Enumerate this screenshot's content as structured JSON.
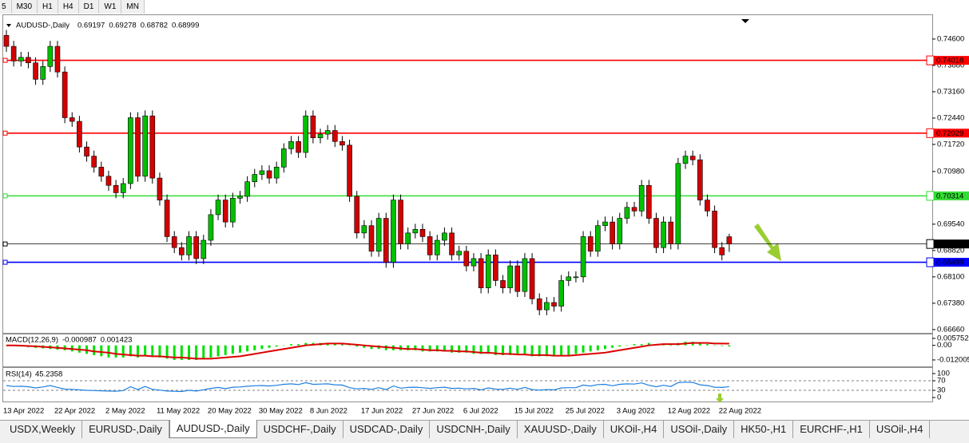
{
  "toolbar": [
    "5",
    "M30",
    "H1",
    "H4",
    "D1",
    "W1",
    "MN"
  ],
  "tabs": [
    "USDX,Weekly",
    "EURUSD-,Daily",
    "AUDUSD-,Daily",
    "USDCHF-,Daily",
    "USDCAD-,Daily",
    "USDCNH-,Daily",
    "XAUUSD-,Daily",
    "UKOil-,H4",
    "USOil-,Daily",
    "HK50-,H1",
    "EURCHF-,H1",
    "USOil-,H4"
  ],
  "active_tab": 2,
  "chart_data": [
    {
      "type": "candlestick",
      "title": "AUDUSD-,Daily",
      "categories": [
        "13 Apr 2022",
        null,
        null,
        null,
        null,
        null,
        null,
        "22 Apr 2022",
        null,
        null,
        null,
        null,
        null,
        null,
        "2 May 2022",
        null,
        null,
        null,
        null,
        null,
        null,
        "11 May 2022",
        null,
        null,
        null,
        null,
        null,
        null,
        "20 May 2022",
        null,
        null,
        null,
        null,
        null,
        null,
        "30 May 2022",
        null,
        null,
        null,
        null,
        null,
        null,
        "8 Jun 2022",
        null,
        null,
        null,
        null,
        null,
        null,
        "17 Jun 2022",
        null,
        null,
        null,
        null,
        null,
        null,
        "27 Jun 2022",
        null,
        null,
        null,
        null,
        null,
        null,
        "6 Jul 2022",
        null,
        null,
        null,
        null,
        null,
        null,
        "15 Jul 2022",
        null,
        null,
        null,
        null,
        null,
        null,
        "25 Jul 2022",
        null,
        null,
        null,
        null,
        null,
        null,
        "3 Aug 2022",
        null,
        null,
        null,
        null,
        null,
        null,
        "12 Aug 2022",
        null,
        null,
        null,
        null,
        null,
        null,
        "22 Aug 2022",
        null
      ],
      "open": [
        0.747,
        0.744,
        0.74,
        0.741,
        0.7395,
        0.735,
        0.7385,
        0.744,
        0.737,
        0.7245,
        0.7235,
        0.7165,
        0.714,
        0.711,
        0.7085,
        0.706,
        0.704,
        0.7065,
        0.7245,
        0.7085,
        0.725,
        0.708,
        0.702,
        0.692,
        0.689,
        0.687,
        0.692,
        0.686,
        0.691,
        0.698,
        0.702,
        0.696,
        0.7025,
        0.703,
        0.707,
        0.709,
        0.71,
        0.708,
        0.711,
        0.716,
        0.718,
        0.715,
        0.725,
        0.719,
        0.72,
        0.721,
        0.718,
        0.717,
        0.703,
        0.693,
        0.695,
        0.688,
        0.697,
        0.685,
        0.702,
        0.69,
        0.693,
        0.694,
        0.692,
        0.687,
        0.691,
        0.693,
        0.687,
        0.688,
        0.684,
        0.686,
        0.678,
        0.687,
        0.68,
        0.678,
        0.684,
        0.677,
        0.686,
        0.675,
        0.672,
        0.674,
        0.673,
        0.68,
        0.681,
        0.681,
        0.692,
        0.688,
        0.695,
        0.696,
        0.69,
        0.697,
        0.7,
        0.699,
        0.706,
        0.697,
        0.689,
        0.696,
        0.69,
        0.712,
        0.714,
        0.713,
        0.702,
        0.699,
        0.689,
        0.69197
      ],
      "high": [
        0.7485,
        0.7455,
        0.7425,
        0.7425,
        0.741,
        0.74,
        0.7455,
        0.7455,
        0.7385,
        0.726,
        0.725,
        0.718,
        0.7155,
        0.7125,
        0.71,
        0.7075,
        0.708,
        0.726,
        0.726,
        0.7265,
        0.7265,
        0.7095,
        0.7035,
        0.6935,
        0.6905,
        0.6935,
        0.6935,
        0.6925,
        0.6995,
        0.7035,
        0.7035,
        0.704,
        0.7045,
        0.7085,
        0.7105,
        0.7115,
        0.7115,
        0.7125,
        0.7175,
        0.7195,
        0.7195,
        0.7265,
        0.7265,
        0.7215,
        0.7225,
        0.7225,
        0.7195,
        0.7185,
        0.7045,
        0.6965,
        0.6965,
        0.6985,
        0.6985,
        0.7035,
        0.7035,
        0.6945,
        0.6955,
        0.6955,
        0.6935,
        0.6925,
        0.6945,
        0.6945,
        0.6895,
        0.6895,
        0.6875,
        0.6875,
        0.6885,
        0.6885,
        0.6815,
        0.6855,
        0.6855,
        0.6875,
        0.6875,
        0.6765,
        0.6755,
        0.6755,
        0.6815,
        0.6825,
        0.6825,
        0.6935,
        0.6935,
        0.6965,
        0.6975,
        0.6975,
        0.6985,
        0.7015,
        0.7015,
        0.7075,
        0.7075,
        0.6985,
        0.6975,
        0.6975,
        0.7135,
        0.7155,
        0.7155,
        0.7145,
        0.7035,
        0.7005,
        0.6905,
        0.69278
      ],
      "low": [
        0.7425,
        0.7385,
        0.7385,
        0.738,
        0.7335,
        0.7335,
        0.737,
        0.7355,
        0.723,
        0.722,
        0.715,
        0.7125,
        0.7095,
        0.707,
        0.7045,
        0.7025,
        0.7025,
        0.705,
        0.707,
        0.707,
        0.7065,
        0.7005,
        0.6905,
        0.6875,
        0.6855,
        0.6855,
        0.6845,
        0.6845,
        0.6895,
        0.6965,
        0.6945,
        0.6945,
        0.701,
        0.7015,
        0.7055,
        0.7075,
        0.7065,
        0.7065,
        0.7095,
        0.7145,
        0.7135,
        0.7135,
        0.7175,
        0.7175,
        0.7185,
        0.7165,
        0.7155,
        0.7015,
        0.6915,
        0.6915,
        0.6865,
        0.6865,
        0.6835,
        0.6835,
        0.6885,
        0.6885,
        0.6915,
        0.6905,
        0.6855,
        0.6855,
        0.6895,
        0.6855,
        0.6855,
        0.6825,
        0.6825,
        0.6765,
        0.6765,
        0.6785,
        0.6765,
        0.6765,
        0.6755,
        0.6755,
        0.6735,
        0.6705,
        0.6705,
        0.6715,
        0.6715,
        0.6785,
        0.6795,
        0.6795,
        0.6865,
        0.6865,
        0.6935,
        0.6885,
        0.6885,
        0.6955,
        0.6975,
        0.6975,
        0.6955,
        0.6875,
        0.6875,
        0.6885,
        0.6885,
        0.7105,
        0.7115,
        0.7005,
        0.6975,
        0.6875,
        0.6855,
        0.68782
      ],
      "close": [
        0.744,
        0.74,
        0.741,
        0.7395,
        0.735,
        0.7385,
        0.744,
        0.737,
        0.7245,
        0.7235,
        0.7165,
        0.714,
        0.711,
        0.7085,
        0.706,
        0.704,
        0.7065,
        0.7245,
        0.7085,
        0.725,
        0.708,
        0.702,
        0.692,
        0.689,
        0.687,
        0.692,
        0.686,
        0.691,
        0.698,
        0.702,
        0.696,
        0.7025,
        0.703,
        0.707,
        0.709,
        0.71,
        0.708,
        0.711,
        0.716,
        0.718,
        0.715,
        0.725,
        0.719,
        0.72,
        0.721,
        0.718,
        0.717,
        0.703,
        0.693,
        0.695,
        0.688,
        0.697,
        0.685,
        0.702,
        0.69,
        0.693,
        0.694,
        0.692,
        0.687,
        0.691,
        0.693,
        0.687,
        0.688,
        0.684,
        0.686,
        0.678,
        0.687,
        0.68,
        0.678,
        0.684,
        0.677,
        0.686,
        0.675,
        0.672,
        0.674,
        0.673,
        0.68,
        0.681,
        0.681,
        0.692,
        0.688,
        0.695,
        0.696,
        0.69,
        0.697,
        0.7,
        0.699,
        0.706,
        0.697,
        0.689,
        0.696,
        0.69,
        0.712,
        0.714,
        0.713,
        0.702,
        0.699,
        0.689,
        0.687,
        0.68999
      ],
      "up_color": "#00c000",
      "down_color": "#d40000",
      "levels": [
        {
          "value": 0.74018,
          "color": "#ff0000"
        },
        {
          "value": 0.72029,
          "color": "#ff0000"
        },
        {
          "value": 0.70314,
          "color": "#33dd33"
        },
        {
          "value": 0.68999,
          "color": "#000000"
        },
        {
          "value": 0.68499,
          "color": "#0000ff"
        }
      ],
      "ylim": [
        0.6657,
        0.751
      ],
      "yticks": [
        {
          "value": 0.746,
          "label": "0.74600"
        },
        {
          "value": 0.7388,
          "label": "0.73880"
        },
        {
          "value": 0.7316,
          "label": "0.73160"
        },
        {
          "value": 0.7244,
          "label": "0.72440"
        },
        {
          "value": 0.7172,
          "label": "0.71720"
        },
        {
          "value": 0.7098,
          "label": "0.70980"
        },
        {
          "value": 0.6954,
          "label": "0.69540"
        },
        {
          "value": 0.6882,
          "label": "0.68820"
        },
        {
          "value": 0.681,
          "label": "0.68100"
        },
        {
          "value": 0.6738,
          "label": "0.67380"
        },
        {
          "value": 0.6666,
          "label": "0.66660"
        }
      ]
    },
    {
      "type": "macd",
      "title": "MACD(12,26,9)",
      "series": [
        {
          "color": "#00e000",
          "values": [
            0,
            -0.0005,
            -0.001,
            -0.0015,
            -0.002,
            -0.0025,
            -0.003,
            -0.0035,
            -0.004,
            -0.005,
            -0.006,
            -0.007,
            -0.008,
            -0.009,
            -0.01,
            -0.01,
            -0.01,
            -0.009,
            -0.01,
            -0.009,
            -0.009,
            -0.01,
            -0.011,
            -0.012,
            -0.012,
            -0.012,
            -0.012,
            -0.011,
            -0.01,
            -0.009,
            -0.008,
            -0.007,
            -0.006,
            -0.005,
            -0.004,
            -0.003,
            -0.002,
            -0.001,
            0,
            0.001,
            0.001,
            0.002,
            0.002,
            0.002,
            0.002,
            0.002,
            0.001,
            0,
            -0.001,
            -0.002,
            -0.003,
            -0.003,
            -0.004,
            -0.004,
            -0.004,
            -0.004,
            -0.004,
            -0.005,
            -0.005,
            -0.005,
            -0.005,
            -0.006,
            -0.006,
            -0.006,
            -0.007,
            -0.007,
            -0.007,
            -0.008,
            -0.008,
            -0.008,
            -0.008,
            -0.008,
            -0.009,
            -0.009,
            -0.009,
            -0.009,
            -0.008,
            -0.008,
            -0.007,
            -0.006,
            -0.005,
            -0.004,
            -0.003,
            -0.002,
            -0.001,
            0,
            0.001,
            0.001,
            0.002,
            0.001,
            0.001,
            0.001,
            0.002,
            0.003,
            0.003,
            0.002,
            0.001,
            0,
            -0.0005,
            -0.000987
          ]
        },
        {
          "color": "#dd0000",
          "values": [
            0,
            0,
            -0.0002,
            -0.0005,
            -0.0008,
            -0.0012,
            -0.0016,
            -0.002,
            -0.0025,
            -0.003,
            -0.0035,
            -0.004,
            -0.005,
            -0.0055,
            -0.006,
            -0.007,
            -0.0075,
            -0.008,
            -0.0085,
            -0.0085,
            -0.009,
            -0.009,
            -0.0095,
            -0.01,
            -0.01,
            -0.0105,
            -0.011,
            -0.011,
            -0.011,
            -0.0105,
            -0.01,
            -0.0095,
            -0.009,
            -0.008,
            -0.007,
            -0.006,
            -0.005,
            -0.004,
            -0.003,
            -0.002,
            -0.001,
            0,
            0.0005,
            0.001,
            0.0015,
            0.0015,
            0.0015,
            0.001,
            0.0005,
            0,
            -0.0005,
            -0.001,
            -0.0015,
            -0.002,
            -0.0025,
            -0.003,
            -0.003,
            -0.0035,
            -0.004,
            -0.004,
            -0.0045,
            -0.0045,
            -0.005,
            -0.005,
            -0.0055,
            -0.006,
            -0.006,
            -0.0065,
            -0.007,
            -0.007,
            -0.0075,
            -0.0075,
            -0.008,
            -0.008,
            -0.008,
            -0.0085,
            -0.0085,
            -0.0085,
            -0.008,
            -0.0075,
            -0.007,
            -0.0065,
            -0.006,
            -0.005,
            -0.004,
            -0.003,
            -0.002,
            -0.001,
            0,
            0.0005,
            0.001,
            0.001,
            0.001,
            0.0015,
            0.002,
            0.002,
            0.002,
            0.0015,
            0.0015,
            0.001423
          ]
        }
      ],
      "ylim": [
        -0.0173,
        0.009
      ],
      "yticks": [
        0.005752,
        {
          "value": 0,
          "label": "0.00"
        },
        -0.012005
      ]
    },
    {
      "type": "line",
      "title": "RSI(14)",
      "color": "#1e7fe0",
      "values": [
        50,
        46,
        47,
        45,
        40,
        44,
        50,
        42,
        35,
        34,
        32,
        30,
        29,
        28,
        27,
        26,
        29,
        45,
        33,
        46,
        34,
        31,
        27,
        26,
        25,
        30,
        27,
        32,
        38,
        42,
        37,
        43,
        44,
        47,
        49,
        50,
        48,
        51,
        55,
        57,
        54,
        62,
        55,
        56,
        57,
        53,
        52,
        41,
        36,
        38,
        34,
        41,
        33,
        48,
        39,
        42,
        43,
        41,
        38,
        41,
        43,
        38,
        39,
        36,
        38,
        32,
        40,
        35,
        34,
        39,
        34,
        42,
        33,
        31,
        33,
        32,
        40,
        41,
        41,
        52,
        48,
        54,
        55,
        49,
        55,
        57,
        56,
        61,
        51,
        45,
        51,
        46,
        62,
        64,
        63,
        53,
        50,
        43,
        42,
        45.2358
      ],
      "ylim": [
        0,
        100
      ],
      "yticks": [
        100,
        70,
        30,
        0
      ],
      "grid": true
    }
  ]
}
